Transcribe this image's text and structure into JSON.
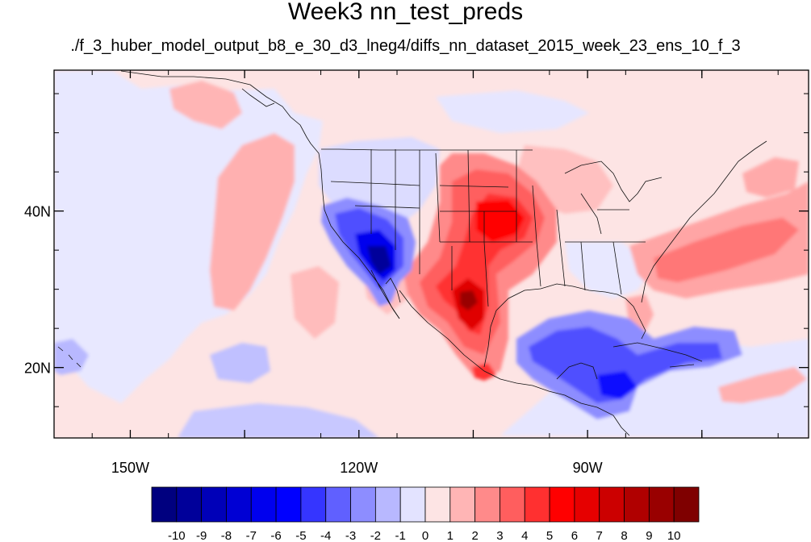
{
  "title": "Week3 nn_test_preds",
  "subtitle": "./f_3_huber_model_output_b8_e_30_d3_lneg4/diffs_nn_dataset_2015_week_23_ens_10_f_3",
  "map": {
    "lon_range": [
      -160,
      -61
    ],
    "lat_range": [
      11,
      58
    ],
    "lon_ticks": [
      {
        "value": -150,
        "label": "150W"
      },
      {
        "value": -120,
        "label": "120W"
      },
      {
        "value": -90,
        "label": "90W"
      }
    ],
    "lat_ticks": [
      {
        "value": 40,
        "label": "40N"
      },
      {
        "value": 20,
        "label": "20N"
      }
    ],
    "background_color": "#fde4e4"
  },
  "colorbar": {
    "labels": [
      "-10",
      "-9",
      "-8",
      "-7",
      "-6",
      "-5",
      "-4",
      "-3",
      "-2",
      "-1",
      "0",
      "1",
      "2",
      "3",
      "4",
      "5",
      "6",
      "7",
      "8",
      "9",
      "10"
    ],
    "colors": [
      "#00007f",
      "#00009a",
      "#0000b8",
      "#0000d4",
      "#0000ee",
      "#0000ff",
      "#3535ff",
      "#6060ff",
      "#8d8dff",
      "#b8b8ff",
      "#e3e3ff",
      "#fde4e4",
      "#ffb5b5",
      "#ff8a8a",
      "#ff5e5e",
      "#ff3030",
      "#ff0000",
      "#e60000",
      "#cc0000",
      "#b00000",
      "#990000",
      "#7f0000"
    ]
  }
}
